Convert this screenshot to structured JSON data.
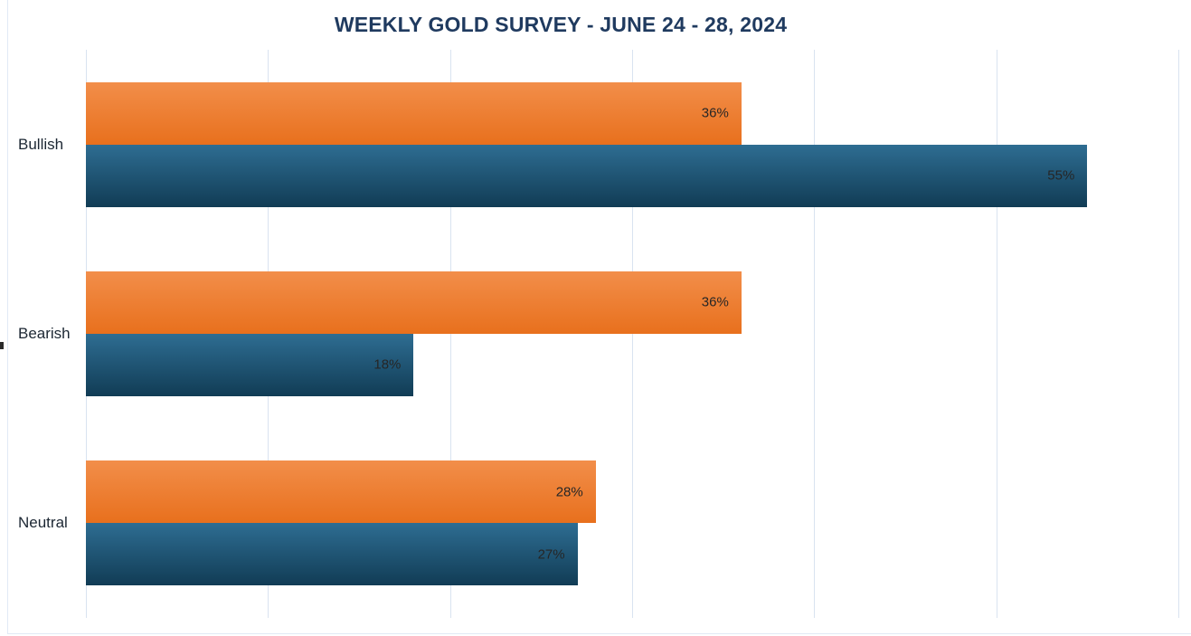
{
  "page": {
    "background": "#ffffff",
    "frame_border_color": "#e1e9f5"
  },
  "chart_data": {
    "type": "bar",
    "orientation": "horizontal",
    "title": "WEEKLY GOLD SURVEY - JUNE 24 - 28, 2024",
    "categories": [
      "Bullish",
      "Bearish",
      "Neutral"
    ],
    "series": [
      {
        "name": "series-1-orange",
        "color_top": "#f28e4a",
        "color_bottom": "#e8701d",
        "values": [
          36,
          36,
          28
        ],
        "labels": [
          "36%",
          "36%",
          "28%"
        ]
      },
      {
        "name": "series-2-blue",
        "color_top": "#2e6d92",
        "color_bottom": "#113c55",
        "values": [
          55,
          18,
          27
        ],
        "labels": [
          "55%",
          "18%",
          "27%"
        ]
      }
    ],
    "xlim": [
      0,
      60
    ],
    "gridline_interval": 10,
    "grid": true,
    "legend_position": "none",
    "title_color": "#1f3a5f",
    "gridline_color": "#d9e3f0",
    "category_label_color": "#1c2733",
    "value_label_color": "#262626"
  }
}
